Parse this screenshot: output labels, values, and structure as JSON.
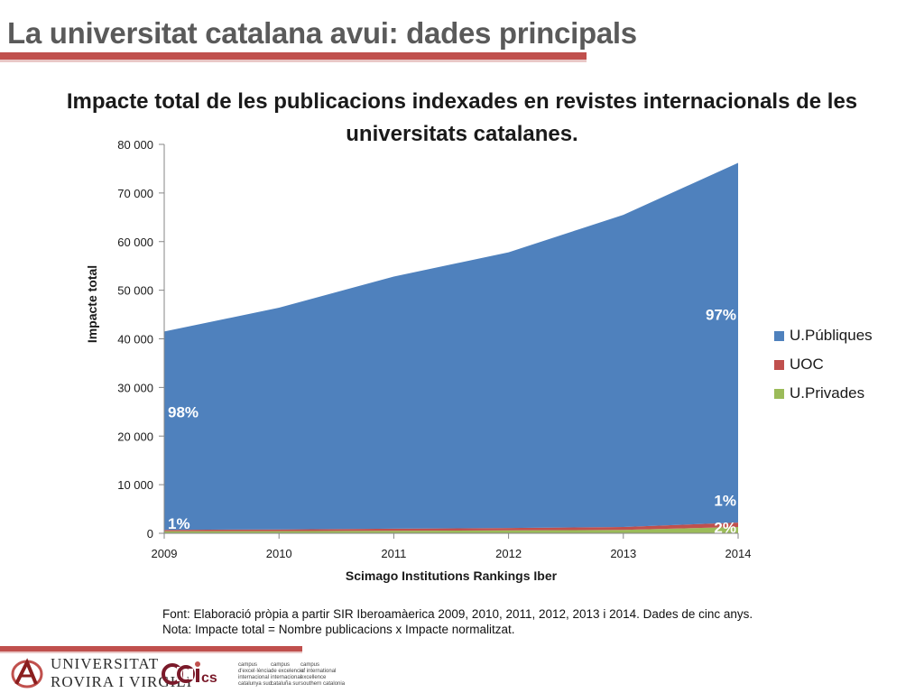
{
  "slide": {
    "title": "La universitat catalana avui: dades principals",
    "accent_color": "#c0504d"
  },
  "chart_data": {
    "type": "area",
    "stacked": true,
    "title": "Impacte total de les publicacions indexades en revistes internacionals de les universitats catalanes.",
    "xlabel": "Scimago Institutions Rankings Iber",
    "ylabel": "Impacte total",
    "x": [
      "2009",
      "2010",
      "2011",
      "2012",
      "2013",
      "2014"
    ],
    "ylim": [
      0,
      80000
    ],
    "yticks": [
      0,
      10000,
      20000,
      30000,
      40000,
      50000,
      60000,
      70000,
      80000
    ],
    "ytick_labels": [
      "0",
      "10 000",
      "20 000",
      "30 000",
      "40 000",
      "50 000",
      "60 000",
      "70 000",
      "80 000"
    ],
    "series": [
      {
        "name": "U.Privades",
        "color": "#9bbb59",
        "values": [
          400,
          450,
          500,
          600,
          700,
          1300
        ]
      },
      {
        "name": "UOC",
        "color": "#c0504d",
        "values": [
          300,
          350,
          450,
          500,
          600,
          900
        ]
      },
      {
        "name": "U.Públiques",
        "color": "#4f81bd",
        "values": [
          40800,
          45600,
          51850,
          56700,
          64200,
          74000
        ]
      }
    ],
    "legend_order": [
      "U.Públiques",
      "UOC",
      "U.Privades"
    ],
    "legend_position": "right",
    "grid": false,
    "annotations": [
      {
        "text": "98%",
        "x": "2009",
        "y": 25000
      },
      {
        "text": "97%",
        "x": "2014",
        "y": 45000
      },
      {
        "text": "1%",
        "x": "2009",
        "y": 2000
      },
      {
        "text": "1%",
        "x": "2014",
        "y": 6800
      },
      {
        "text": "2%",
        "x": "2014",
        "y": 1200
      }
    ]
  },
  "notes": {
    "source": "Font: Elaboració pròpia a partir SIR Iberoamàerica 2009, 2010, 2011, 2012, 2013 i 2014. Dades de cinc anys.",
    "note": "Nota: Impacte total = Nombre publicacions x Impacte normalitzat."
  },
  "footer": {
    "university_line1": "Universitat",
    "university_line2": "Rovira i Virgili",
    "cei_mark": "ceics",
    "cei_text_1": [
      "campus",
      "d'excel·lència",
      "internacional",
      "catalunya sud"
    ],
    "cei_text_2": [
      "campus",
      "de excelencia",
      "internacional",
      "cataluña sur"
    ],
    "cei_text_3": [
      "campus",
      "of international",
      "excellence",
      "southern catalonia"
    ]
  }
}
